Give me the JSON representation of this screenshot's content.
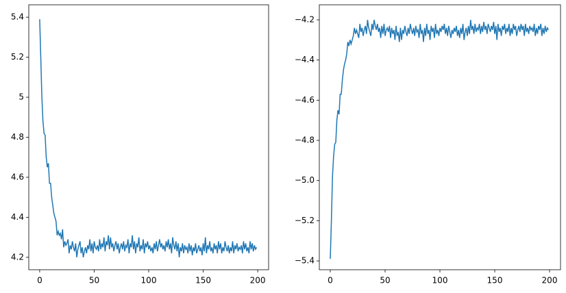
{
  "chart_data": [
    {
      "type": "line",
      "color": "#1f77b4",
      "xlim": [
        -10,
        210
      ],
      "ylim": [
        4.138,
        5.462
      ],
      "xticks": [
        0,
        50,
        100,
        150,
        200
      ],
      "yticks": [
        4.2,
        4.4,
        4.6,
        4.8,
        5.0,
        5.2,
        5.4
      ],
      "x": [
        0,
        1,
        2,
        3,
        4,
        5,
        6,
        7,
        8,
        9,
        10,
        11,
        12,
        13,
        14,
        15,
        16,
        17,
        18,
        19,
        20,
        21,
        22,
        23,
        24,
        25,
        26,
        27,
        28,
        29,
        30,
        31,
        32,
        33,
        34,
        35,
        36,
        37,
        38,
        39,
        40,
        41,
        42,
        43,
        44,
        45,
        46,
        47,
        48,
        49,
        50,
        51,
        52,
        53,
        54,
        55,
        56,
        57,
        58,
        59,
        60,
        61,
        62,
        63,
        64,
        65,
        66,
        67,
        68,
        69,
        70,
        71,
        72,
        73,
        74,
        75,
        76,
        77,
        78,
        79,
        80,
        81,
        82,
        83,
        84,
        85,
        86,
        87,
        88,
        89,
        90,
        91,
        92,
        93,
        94,
        95,
        96,
        97,
        98,
        99,
        100,
        101,
        102,
        103,
        104,
        105,
        106,
        107,
        108,
        109,
        110,
        111,
        112,
        113,
        114,
        115,
        116,
        117,
        118,
        119,
        120,
        121,
        122,
        123,
        124,
        125,
        126,
        127,
        128,
        129,
        130,
        131,
        132,
        133,
        134,
        135,
        136,
        137,
        138,
        139,
        140,
        141,
        142,
        143,
        144,
        145,
        146,
        147,
        148,
        149,
        150,
        151,
        152,
        153,
        154,
        155,
        156,
        157,
        158,
        159,
        160,
        161,
        162,
        163,
        164,
        165,
        166,
        167,
        168,
        169,
        170,
        171,
        172,
        173,
        174,
        175,
        176,
        177,
        178,
        179,
        180,
        181,
        182,
        183,
        184,
        185,
        186,
        187,
        188,
        189,
        190,
        191,
        192,
        193,
        194,
        195,
        196,
        197,
        198,
        199
      ],
      "values": [
        5.39,
        5.2,
        5.0,
        4.88,
        4.82,
        4.81,
        4.7,
        4.65,
        4.67,
        4.57,
        4.57,
        4.5,
        4.46,
        4.42,
        4.4,
        4.38,
        4.31,
        4.33,
        4.31,
        4.32,
        4.29,
        4.34,
        4.25,
        4.28,
        4.26,
        4.27,
        4.29,
        4.22,
        4.26,
        4.24,
        4.28,
        4.25,
        4.23,
        4.27,
        4.2,
        4.24,
        4.26,
        4.28,
        4.22,
        4.25,
        4.2,
        4.23,
        4.25,
        4.22,
        4.26,
        4.24,
        4.29,
        4.23,
        4.27,
        4.22,
        4.28,
        4.25,
        4.24,
        4.26,
        4.23,
        4.29,
        4.24,
        4.27,
        4.25,
        4.3,
        4.23,
        4.28,
        4.26,
        4.31,
        4.24,
        4.3,
        4.25,
        4.27,
        4.23,
        4.26,
        4.28,
        4.24,
        4.27,
        4.22,
        4.25,
        4.27,
        4.24,
        4.28,
        4.23,
        4.26,
        4.25,
        4.29,
        4.22,
        4.27,
        4.25,
        4.31,
        4.24,
        4.28,
        4.22,
        4.27,
        4.25,
        4.3,
        4.23,
        4.26,
        4.24,
        4.29,
        4.22,
        4.27,
        4.25,
        4.28,
        4.24,
        4.26,
        4.23,
        4.25,
        4.22,
        4.27,
        4.24,
        4.28,
        4.23,
        4.26,
        4.29,
        4.25,
        4.27,
        4.24,
        4.26,
        4.23,
        4.28,
        4.25,
        4.29,
        4.24,
        4.27,
        4.22,
        4.3,
        4.26,
        4.24,
        4.28,
        4.23,
        4.27,
        4.2,
        4.25,
        4.23,
        4.27,
        4.22,
        4.26,
        4.24,
        4.25,
        4.22,
        4.27,
        4.23,
        4.26,
        4.21,
        4.25,
        4.23,
        4.27,
        4.22,
        4.24,
        4.26,
        4.23,
        4.25,
        4.21,
        4.27,
        4.23,
        4.3,
        4.22,
        4.26,
        4.24,
        4.28,
        4.23,
        4.25,
        4.22,
        4.27,
        4.24,
        4.26,
        4.22,
        4.28,
        4.24,
        4.27,
        4.22,
        4.25,
        4.23,
        4.28,
        4.25,
        4.23,
        4.26,
        4.22,
        4.25,
        4.23,
        4.28,
        4.22,
        4.26,
        4.24,
        4.27,
        4.23,
        4.25,
        4.24,
        4.26,
        4.22,
        4.28,
        4.24,
        4.27,
        4.23,
        4.25,
        4.22,
        4.28,
        4.24,
        4.27,
        4.23,
        4.26,
        4.24,
        4.25
      ]
    },
    {
      "type": "line",
      "color": "#1f77b4",
      "xlim": [
        -10,
        210
      ],
      "ylim": [
        -5.444,
        -4.125
      ],
      "xticks": [
        0,
        50,
        100,
        150,
        200
      ],
      "yticks": [
        {
          "value": -5.4,
          "label": "−5.4"
        },
        {
          "value": -5.2,
          "label": "−5.2"
        },
        {
          "value": -5.0,
          "label": "−5.0"
        },
        {
          "value": -4.8,
          "label": "−4.8"
        },
        {
          "value": -4.6,
          "label": "−4.6"
        },
        {
          "value": -4.4,
          "label": "−4.4"
        },
        {
          "value": -4.2,
          "label": "−4.2"
        }
      ],
      "x": [
        0,
        1,
        2,
        3,
        4,
        5,
        6,
        7,
        8,
        9,
        10,
        11,
        12,
        13,
        14,
        15,
        16,
        17,
        18,
        19,
        20,
        21,
        22,
        23,
        24,
        25,
        26,
        27,
        28,
        29,
        30,
        31,
        32,
        33,
        34,
        35,
        36,
        37,
        38,
        39,
        40,
        41,
        42,
        43,
        44,
        45,
        46,
        47,
        48,
        49,
        50,
        51,
        52,
        53,
        54,
        55,
        56,
        57,
        58,
        59,
        60,
        61,
        62,
        63,
        64,
        65,
        66,
        67,
        68,
        69,
        70,
        71,
        72,
        73,
        74,
        75,
        76,
        77,
        78,
        79,
        80,
        81,
        82,
        83,
        84,
        85,
        86,
        87,
        88,
        89,
        90,
        91,
        92,
        93,
        94,
        95,
        96,
        97,
        98,
        99,
        100,
        101,
        102,
        103,
        104,
        105,
        106,
        107,
        108,
        109,
        110,
        111,
        112,
        113,
        114,
        115,
        116,
        117,
        118,
        119,
        120,
        121,
        122,
        123,
        124,
        125,
        126,
        127,
        128,
        129,
        130,
        131,
        132,
        133,
        134,
        135,
        136,
        137,
        138,
        139,
        140,
        141,
        142,
        143,
        144,
        145,
        146,
        147,
        148,
        149,
        150,
        151,
        152,
        153,
        154,
        155,
        156,
        157,
        158,
        159,
        160,
        161,
        162,
        163,
        164,
        165,
        166,
        167,
        168,
        169,
        170,
        171,
        172,
        173,
        174,
        175,
        176,
        177,
        178,
        179,
        180,
        181,
        182,
        183,
        184,
        185,
        186,
        187,
        188,
        189,
        190,
        191,
        192,
        193,
        194,
        195,
        196,
        197,
        198,
        199
      ],
      "values": [
        -5.39,
        -5.2,
        -4.98,
        -4.88,
        -4.82,
        -4.81,
        -4.7,
        -4.65,
        -4.67,
        -4.57,
        -4.57,
        -4.5,
        -4.45,
        -4.42,
        -4.4,
        -4.37,
        -4.31,
        -4.33,
        -4.3,
        -4.32,
        -4.3,
        -4.28,
        -4.24,
        -4.27,
        -4.25,
        -4.27,
        -4.29,
        -4.22,
        -4.26,
        -4.24,
        -4.28,
        -4.25,
        -4.23,
        -4.27,
        -4.2,
        -4.24,
        -4.26,
        -4.28,
        -4.22,
        -4.25,
        -4.2,
        -4.23,
        -4.25,
        -4.22,
        -4.26,
        -4.24,
        -4.29,
        -4.23,
        -4.27,
        -4.22,
        -4.28,
        -4.25,
        -4.24,
        -4.26,
        -4.23,
        -4.29,
        -4.24,
        -4.27,
        -4.25,
        -4.3,
        -4.23,
        -4.28,
        -4.26,
        -4.31,
        -4.24,
        -4.3,
        -4.25,
        -4.27,
        -4.23,
        -4.26,
        -4.28,
        -4.24,
        -4.27,
        -4.22,
        -4.25,
        -4.27,
        -4.24,
        -4.28,
        -4.23,
        -4.26,
        -4.25,
        -4.29,
        -4.22,
        -4.27,
        -4.25,
        -4.31,
        -4.24,
        -4.28,
        -4.22,
        -4.27,
        -4.25,
        -4.3,
        -4.23,
        -4.26,
        -4.24,
        -4.29,
        -4.22,
        -4.27,
        -4.25,
        -4.28,
        -4.24,
        -4.26,
        -4.23,
        -4.25,
        -4.22,
        -4.27,
        -4.24,
        -4.28,
        -4.23,
        -4.26,
        -4.29,
        -4.25,
        -4.27,
        -4.24,
        -4.26,
        -4.23,
        -4.28,
        -4.25,
        -4.29,
        -4.24,
        -4.27,
        -4.22,
        -4.3,
        -4.26,
        -4.24,
        -4.28,
        -4.23,
        -4.27,
        -4.2,
        -4.25,
        -4.23,
        -4.27,
        -4.22,
        -4.26,
        -4.24,
        -4.25,
        -4.22,
        -4.27,
        -4.23,
        -4.26,
        -4.21,
        -4.25,
        -4.23,
        -4.27,
        -4.22,
        -4.24,
        -4.26,
        -4.23,
        -4.25,
        -4.21,
        -4.27,
        -4.23,
        -4.3,
        -4.22,
        -4.26,
        -4.24,
        -4.28,
        -4.23,
        -4.25,
        -4.22,
        -4.27,
        -4.24,
        -4.26,
        -4.22,
        -4.28,
        -4.24,
        -4.27,
        -4.22,
        -4.25,
        -4.23,
        -4.28,
        -4.25,
        -4.23,
        -4.26,
        -4.22,
        -4.25,
        -4.23,
        -4.28,
        -4.22,
        -4.26,
        -4.24,
        -4.27,
        -4.23,
        -4.25,
        -4.24,
        -4.26,
        -4.22,
        -4.28,
        -4.24,
        -4.27,
        -4.23,
        -4.25,
        -4.22,
        -4.28,
        -4.24,
        -4.27,
        -4.23,
        -4.26,
        -4.24,
        -4.25
      ]
    }
  ]
}
